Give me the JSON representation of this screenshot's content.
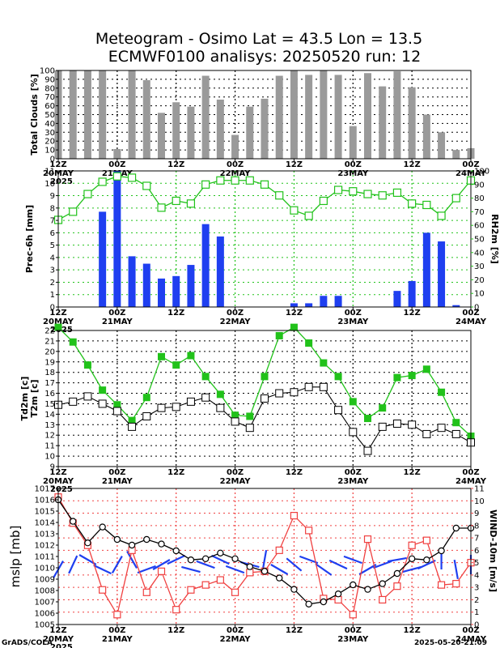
{
  "title_line1": "Meteogram - Osimo Lat = 43.5 Lon = 13.5",
  "title_line2": "ECMWF0100 analisys: 20250520 run: 12",
  "footer_left": "GrADS/COLA",
  "footer_right": "2025-05-20-21:09",
  "colors": {
    "bar_gray": "#9a9a9a",
    "precip_blue": "#1f3ff0",
    "green": "#21c21a",
    "red": "#f04040",
    "black": "#000000",
    "wind_blue": "#1f3ff0"
  },
  "x_axis": {
    "ticks": [
      "12Z",
      "00Z",
      "12Z",
      "00Z",
      "12Z",
      "00Z",
      "12Z",
      "00Z"
    ],
    "dates": [
      "20MAY",
      "21MAY",
      "",
      "22MAY",
      "",
      "23MAY",
      "",
      "24MAY"
    ],
    "year": "2025"
  },
  "chart_data": [
    {
      "type": "bar",
      "panel": "clouds",
      "ylabel": "Total Clouds [%]",
      "ylim": [
        0,
        100
      ],
      "yticks": [
        0,
        10,
        20,
        30,
        40,
        50,
        60,
        70,
        80,
        90,
        100
      ],
      "x_hours": [
        0,
        3,
        6,
        9,
        12,
        15,
        18,
        21,
        24,
        27,
        30,
        33,
        36,
        39,
        42,
        45,
        48,
        51,
        54,
        57,
        60,
        63,
        66,
        69,
        72,
        75,
        78,
        81,
        84
      ],
      "values": [
        100,
        100,
        100,
        100,
        11,
        100,
        89,
        52,
        64,
        59,
        94,
        67,
        27,
        59,
        68,
        94,
        100,
        95,
        100,
        95,
        37,
        97,
        82,
        99,
        81,
        50,
        30,
        10,
        12
      ]
    },
    {
      "type": "bar",
      "panel": "precip",
      "ylabel": "Prec-6h [mm]",
      "ylabel_right": "RH2m [%]",
      "ylim": [
        0,
        11
      ],
      "yticks": [
        0,
        1,
        2,
        3,
        4,
        5,
        6,
        7,
        8,
        9,
        10,
        11
      ],
      "ylim_right": [
        0,
        100
      ],
      "yticks_right": [
        0,
        10,
        20,
        30,
        40,
        50,
        60,
        70,
        80,
        90,
        100
      ],
      "x_hours": [
        9,
        12,
        15,
        18,
        21,
        24,
        27,
        30,
        33,
        36,
        48,
        51,
        54,
        57,
        69,
        72,
        75,
        78,
        81
      ],
      "values": [
        7.7,
        11.2,
        4.1,
        3.5,
        2.3,
        2.5,
        3.4,
        6.7,
        5.7,
        0.0,
        0.3,
        0.3,
        0.9,
        0.9,
        1.3,
        2.1,
        6.0,
        5.3,
        0.15
      ],
      "rh_x_hours": [
        0,
        3,
        6,
        9,
        12,
        15,
        18,
        21,
        24,
        27,
        30,
        33,
        36,
        39,
        42,
        45,
        48,
        51,
        54,
        57,
        60,
        63,
        66,
        69,
        72,
        75,
        78,
        81,
        84
      ],
      "rh_values": [
        64,
        70,
        83,
        92,
        96,
        95,
        89,
        73,
        78,
        76,
        90,
        93,
        93,
        93,
        90,
        82,
        71,
        67,
        78,
        86,
        85,
        83,
        82,
        84,
        76,
        75,
        67,
        80,
        93
      ]
    },
    {
      "type": "line",
      "panel": "temperature",
      "ylabel": "Td2m [c]",
      "ylabel_green": "T2m [c]",
      "ylim": [
        9,
        22
      ],
      "yticks": [
        9,
        10,
        11,
        12,
        13,
        14,
        15,
        16,
        17,
        18,
        19,
        20,
        21,
        22
      ],
      "x_hours": [
        0,
        3,
        6,
        9,
        12,
        15,
        18,
        21,
        24,
        27,
        30,
        33,
        36,
        39,
        42,
        45,
        48,
        51,
        54,
        57,
        60,
        63,
        66,
        69,
        72,
        75,
        78,
        81,
        84
      ],
      "series": [
        {
          "name": "T2m",
          "values": [
            22.3,
            20.9,
            18.7,
            16.3,
            14.9,
            13.4,
            15.6,
            19.5,
            18.7,
            19.6,
            17.6,
            15.9,
            13.9,
            13.8,
            17.6,
            21.5,
            22.3,
            20.8,
            18.9,
            17.6,
            15.2,
            13.6,
            14.6,
            17.5,
            17.7,
            18.3,
            16.1,
            13.2,
            11.9
          ]
        },
        {
          "name": "Td2m",
          "values": [
            14.9,
            15.2,
            15.7,
            15.0,
            14.3,
            12.8,
            13.8,
            14.6,
            14.7,
            15.2,
            15.6,
            14.6,
            13.3,
            12.7,
            15.5,
            16.0,
            16.1,
            16.6,
            16.6,
            14.4,
            12.3,
            10.5,
            12.8,
            13.1,
            13.0,
            12.1,
            12.7,
            12.1,
            11.3
          ]
        }
      ]
    },
    {
      "type": "line",
      "panel": "pressure_wind",
      "ylabel": "mslp [mb]",
      "ylabel_right": "WIND-10m [m/s]",
      "ylim": [
        1005,
        1017
      ],
      "yticks": [
        1005,
        1006,
        1007,
        1008,
        1009,
        1010,
        1011,
        1012,
        1013,
        1014,
        1015,
        1016,
        1017
      ],
      "ylim_right": [
        0,
        11
      ],
      "yticks_right": [
        0,
        1,
        2,
        3,
        4,
        5,
        6,
        7,
        8,
        9,
        10,
        11
      ],
      "x_hours": [
        0,
        3,
        6,
        9,
        12,
        15,
        18,
        21,
        24,
        27,
        30,
        33,
        36,
        39,
        42,
        45,
        48,
        51,
        54,
        57,
        60,
        63,
        66,
        69,
        72,
        75,
        78,
        81,
        84
      ],
      "series": [
        {
          "name": "mslp",
          "values": [
            1016.0,
            1014.1,
            1012.2,
            1013.6,
            1012.5,
            1012.0,
            1012.5,
            1012.1,
            1011.5,
            1010.7,
            1010.8,
            1011.3,
            1010.8,
            1010.1,
            1009.7,
            1009.1,
            1008.1,
            1006.8,
            1007.0,
            1007.7,
            1008.5,
            1008.1,
            1008.6,
            1009.5,
            1010.8,
            1010.7,
            1011.5,
            1013.5,
            1013.5
          ]
        },
        {
          "name": "WIND-10m",
          "values": [
            10.3,
            8.2,
            6.4,
            2.8,
            0.8,
            6.0,
            2.6,
            4.3,
            1.2,
            2.8,
            3.2,
            3.6,
            2.6,
            4.2,
            4.3,
            6.0,
            8.8,
            7.6,
            2.1,
            2.0,
            0.8,
            6.9,
            2.0,
            3.1,
            6.4,
            6.8,
            3.2,
            3.3,
            5.0
          ]
        }
      ],
      "wind_barb_angles_deg": [
        120,
        115,
        30,
        25,
        120,
        60,
        160,
        150,
        155,
        15,
        20,
        25,
        20,
        15,
        100,
        30,
        40,
        20,
        35,
        25,
        20,
        150,
        160,
        170,
        165,
        155,
        90,
        80,
        90
      ]
    }
  ]
}
